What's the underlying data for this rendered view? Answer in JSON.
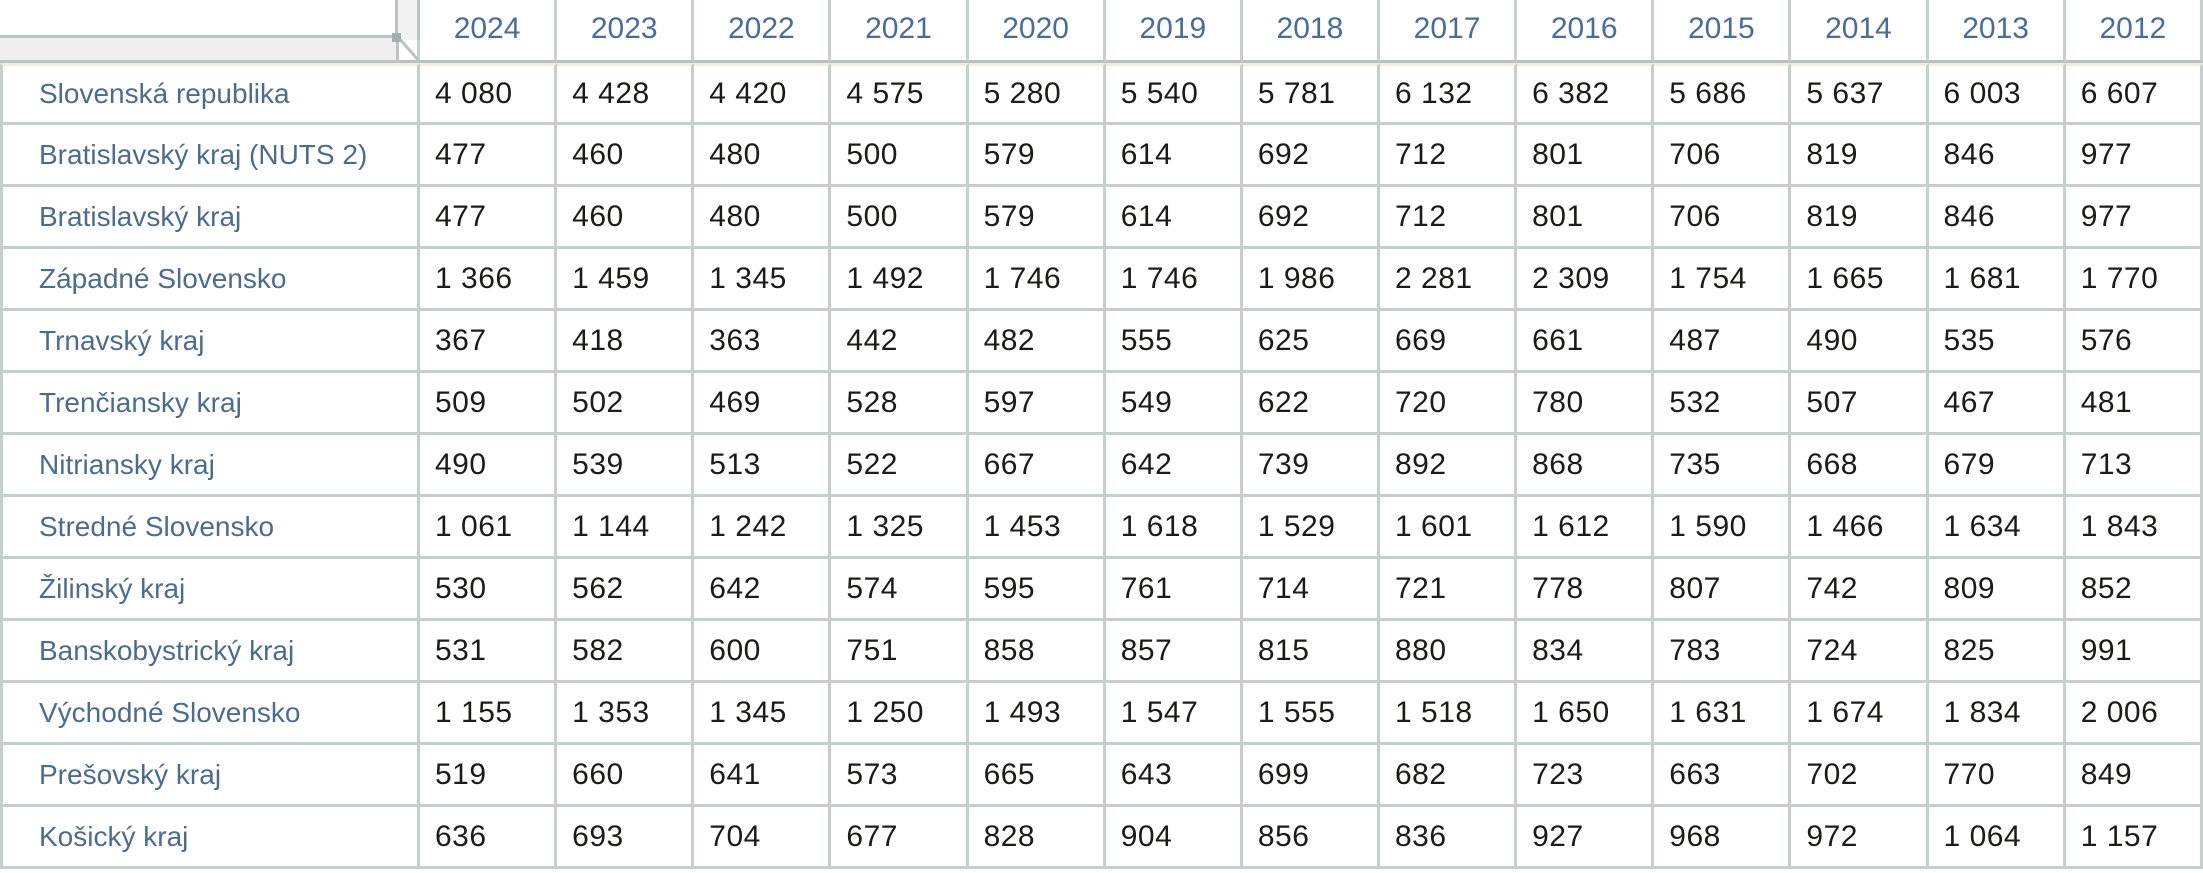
{
  "app": {
    "description": "Regional statistics pivot table, Slovak regions by year"
  },
  "colors": {
    "year_header_text": "#486d9c",
    "row_label_text": "#4c6c8e",
    "value_text": "#1b1b19",
    "grid_border": "#c5cfce",
    "header_bottom_border": "#b6c2c1",
    "axis_bar_fill": "#efefef",
    "axis_bar_border": "#b9c4c3",
    "frozen_row_strip": "#f2ecda",
    "background": "#ffffff"
  },
  "corner": {
    "row_axis_handle": "row-dimension-handle",
    "col_axis_handle": "column-dimension-handle"
  },
  "table": {
    "years": [
      "2024",
      "2023",
      "2022",
      "2021",
      "2020",
      "2019",
      "2018",
      "2017",
      "2016",
      "2015",
      "2014",
      "2013",
      "2012"
    ],
    "rows": [
      {
        "label": "Slovenská republika",
        "values": [
          "4 080",
          "4 428",
          "4 420",
          "4 575",
          "5 280",
          "5 540",
          "5 781",
          "6 132",
          "6 382",
          "5 686",
          "5 637",
          "6 003",
          "6 607"
        ]
      },
      {
        "label": "Bratislavský kraj (NUTS 2)",
        "values": [
          "477",
          "460",
          "480",
          "500",
          "579",
          "614",
          "692",
          "712",
          "801",
          "706",
          "819",
          "846",
          "977"
        ]
      },
      {
        "label": "Bratislavský kraj",
        "values": [
          "477",
          "460",
          "480",
          "500",
          "579",
          "614",
          "692",
          "712",
          "801",
          "706",
          "819",
          "846",
          "977"
        ]
      },
      {
        "label": "Západné Slovensko",
        "values": [
          "1 366",
          "1 459",
          "1 345",
          "1 492",
          "1 746",
          "1 746",
          "1 986",
          "2 281",
          "2 309",
          "1 754",
          "1 665",
          "1 681",
          "1 770"
        ]
      },
      {
        "label": "Trnavský kraj",
        "values": [
          "367",
          "418",
          "363",
          "442",
          "482",
          "555",
          "625",
          "669",
          "661",
          "487",
          "490",
          "535",
          "576"
        ]
      },
      {
        "label": "Trenčiansky kraj",
        "values": [
          "509",
          "502",
          "469",
          "528",
          "597",
          "549",
          "622",
          "720",
          "780",
          "532",
          "507",
          "467",
          "481"
        ]
      },
      {
        "label": "Nitriansky kraj",
        "values": [
          "490",
          "539",
          "513",
          "522",
          "667",
          "642",
          "739",
          "892",
          "868",
          "735",
          "668",
          "679",
          "713"
        ]
      },
      {
        "label": "Stredné Slovensko",
        "values": [
          "1 061",
          "1 144",
          "1 242",
          "1 325",
          "1 453",
          "1 618",
          "1 529",
          "1 601",
          "1 612",
          "1 590",
          "1 466",
          "1 634",
          "1 843"
        ]
      },
      {
        "label": "Žilinský kraj",
        "values": [
          "530",
          "562",
          "642",
          "574",
          "595",
          "761",
          "714",
          "721",
          "778",
          "807",
          "742",
          "809",
          "852"
        ]
      },
      {
        "label": "Banskobystrický kraj",
        "values": [
          "531",
          "582",
          "600",
          "751",
          "858",
          "857",
          "815",
          "880",
          "834",
          "783",
          "724",
          "825",
          "991"
        ]
      },
      {
        "label": "Východné Slovensko",
        "values": [
          "1 155",
          "1 353",
          "1 345",
          "1 250",
          "1 493",
          "1 547",
          "1 555",
          "1 518",
          "1 650",
          "1 631",
          "1 674",
          "1 834",
          "2 006"
        ]
      },
      {
        "label": "Prešovský kraj",
        "values": [
          "519",
          "660",
          "641",
          "573",
          "665",
          "643",
          "699",
          "682",
          "723",
          "663",
          "702",
          "770",
          "849"
        ]
      },
      {
        "label": "Košický kraj",
        "values": [
          "636",
          "693",
          "704",
          "677",
          "828",
          "904",
          "856",
          "836",
          "927",
          "968",
          "972",
          "1 064",
          "1 157"
        ]
      }
    ]
  }
}
